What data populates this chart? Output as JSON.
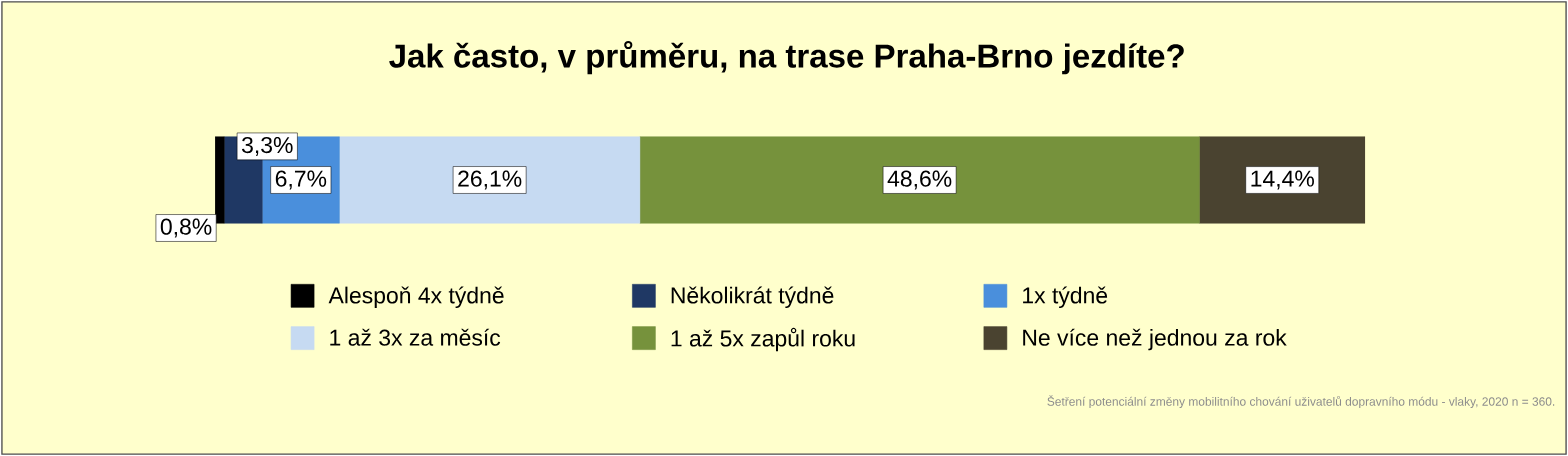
{
  "chart_data": {
    "type": "bar",
    "orientation": "horizontal",
    "stacked": true,
    "title": "Jak často, v průměru, na trase Praha-Brno jezdíte?",
    "categories": [
      null
    ],
    "legend": "bottom",
    "series": [
      {
        "name": "Alespoň 4x týdně",
        "color": "#000000",
        "values": [
          0.8
        ],
        "value_labels": [
          "0,8%"
        ]
      },
      {
        "name": "Několikrát týdně",
        "color": "#1f3864",
        "values": [
          3.3
        ],
        "value_labels": [
          "3,3%"
        ]
      },
      {
        "name": "1x týdně",
        "color": "#4a8fdc",
        "values": [
          6.7
        ],
        "value_labels": [
          "6,7%"
        ]
      },
      {
        "name": "1 až 3x za měsíc",
        "color": "#c6daf2",
        "values": [
          26.1
        ],
        "value_labels": [
          "26,1%"
        ]
      },
      {
        "name": "1 až 5x zapůl roku",
        "color": "#76923c",
        "values": [
          48.6
        ],
        "value_labels": [
          "48,6%"
        ]
      },
      {
        "name": "Ne více než jednou za rok",
        "color": "#4a4330",
        "values": [
          14.4
        ],
        "value_labels": [
          "14,4%"
        ]
      }
    ],
    "annotations": [
      "Šetření potenciální změny mobilitního chování uživatelů dopravního módu - vlaky, 2020 n = 360."
    ]
  }
}
